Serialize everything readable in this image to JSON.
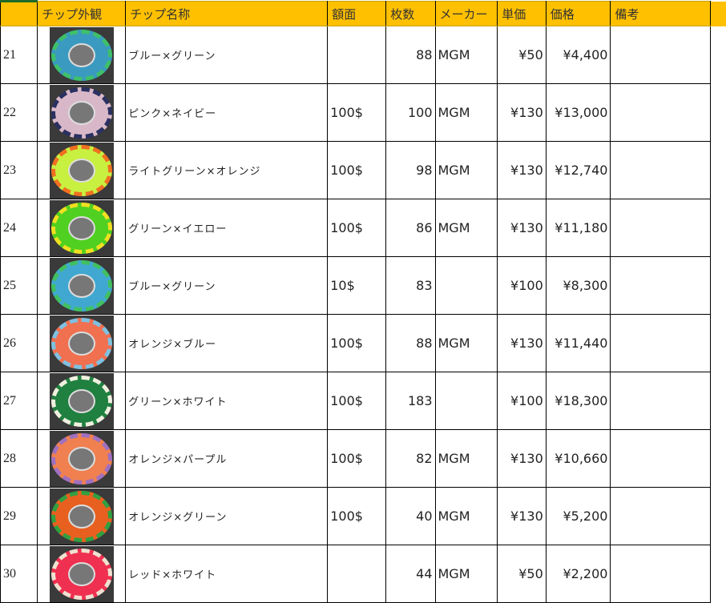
{
  "headers": [
    "",
    "チップ外観",
    "チップ名称",
    "額面",
    "枚数",
    "メーカー",
    "単価",
    "価格",
    "備考"
  ],
  "rows": [
    {
      "no": "21",
      "name": "ブルー×グリーン",
      "face": "",
      "count": "88",
      "maker": "MGM",
      "unit": "¥50",
      "price": "¥4,400",
      "note": "",
      "color": "#3a9ac0",
      "edge": "#3ec06a"
    },
    {
      "no": "22",
      "name": "ピンク×ネイビー",
      "face": "100$",
      "count": "100",
      "maker": "MGM",
      "unit": "¥130",
      "price": "¥13,000",
      "note": "",
      "color": "#d8b8c8",
      "edge": "#2a3060"
    },
    {
      "no": "23",
      "name": "ライトグリーン×オレンジ",
      "face": "100$",
      "count": "98",
      "maker": "MGM",
      "unit": "¥130",
      "price": "¥12,740",
      "note": "",
      "color": "#c8f040",
      "edge": "#f07020"
    },
    {
      "no": "24",
      "name": "グリーン×イエロー",
      "face": "100$",
      "count": "86",
      "maker": "MGM",
      "unit": "¥130",
      "price": "¥11,180",
      "note": "",
      "color": "#50d020",
      "edge": "#f0e020"
    },
    {
      "no": "25",
      "name": "ブルー×グリーン",
      "face": "10$",
      "count": "83",
      "maker": "",
      "unit": "¥100",
      "price": "¥8,300",
      "note": "",
      "color": "#40a8d0",
      "edge": "#40c060"
    },
    {
      "no": "26",
      "name": "オレンジ×ブルー",
      "face": "100$",
      "count": "88",
      "maker": "MGM",
      "unit": "¥130",
      "price": "¥11,440",
      "note": "",
      "color": "#f07050",
      "edge": "#80c0e0"
    },
    {
      "no": "27",
      "name": "グリーン×ホワイト",
      "face": "100$",
      "count": "183",
      "maker": "",
      "unit": "¥100",
      "price": "¥18,300",
      "note": "",
      "color": "#208040",
      "edge": "#f0f0e0"
    },
    {
      "no": "28",
      "name": "オレンジ×パープル",
      "face": "100$",
      "count": "82",
      "maker": "MGM",
      "unit": "¥130",
      "price": "¥10,660",
      "note": "",
      "color": "#f08050",
      "edge": "#a070c0"
    },
    {
      "no": "29",
      "name": "オレンジ×グリーン",
      "face": "100$",
      "count": "40",
      "maker": "MGM",
      "unit": "¥130",
      "price": "¥5,200",
      "note": "",
      "color": "#e86020",
      "edge": "#30a040"
    },
    {
      "no": "30",
      "name": "レッド×ホワイト",
      "face": "",
      "count": "44",
      "maker": "MGM",
      "unit": "¥50",
      "price": "¥2,200",
      "note": "",
      "color": "#f03050",
      "edge": "#f0e0d0"
    }
  ]
}
